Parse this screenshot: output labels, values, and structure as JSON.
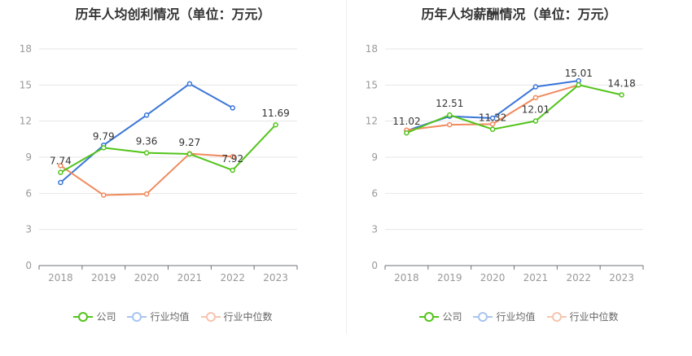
{
  "chart_data": [
    {
      "type": "line",
      "title": "历年人均创利情况（单位：万元）",
      "categories": [
        "2018",
        "2019",
        "2020",
        "2021",
        "2022",
        "2023"
      ],
      "ylim": [
        0,
        18
      ],
      "yticks": [
        0,
        3,
        6,
        9,
        12,
        15,
        18
      ],
      "series": [
        {
          "name": "公司",
          "color": "#52c41a",
          "values": [
            7.74,
            9.79,
            9.36,
            9.27,
            7.92,
            11.69
          ],
          "labels": [
            "7.74",
            "9.79",
            "9.36",
            "9.27",
            "7.92",
            "11.69"
          ]
        },
        {
          "name": "行业均值",
          "color": "#3a76d8",
          "values": [
            6.9,
            10.0,
            12.5,
            15.1,
            13.1,
            null
          ]
        },
        {
          "name": "行业中位数",
          "color": "#f08a5d",
          "values": [
            8.3,
            5.85,
            5.95,
            9.3,
            9.05,
            null
          ]
        }
      ],
      "legend": [
        "公司",
        "行业均值",
        "行业中位数"
      ]
    },
    {
      "type": "line",
      "title": "历年人均薪酬情况（单位：万元）",
      "categories": [
        "2018",
        "2019",
        "2020",
        "2021",
        "2022",
        "2023"
      ],
      "ylim": [
        0,
        18
      ],
      "yticks": [
        0,
        3,
        6,
        9,
        12,
        15,
        18
      ],
      "series": [
        {
          "name": "公司",
          "color": "#52c41a",
          "values": [
            11.02,
            12.51,
            11.32,
            12.01,
            15.01,
            14.18
          ],
          "labels": [
            "11.02",
            "12.51",
            "11.32",
            "12.01",
            "15.01",
            "14.18"
          ]
        },
        {
          "name": "行业均值",
          "color": "#3a76d8",
          "values": [
            11.2,
            12.4,
            12.25,
            14.85,
            15.35,
            null
          ]
        },
        {
          "name": "行业中位数",
          "color": "#f08a5d",
          "values": [
            11.25,
            11.7,
            11.75,
            13.95,
            15.0,
            null
          ]
        }
      ],
      "legend": [
        "公司",
        "行业均值",
        "行业中位数"
      ]
    }
  ]
}
